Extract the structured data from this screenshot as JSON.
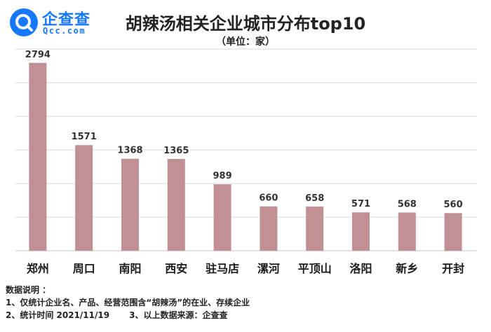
{
  "brand": {
    "name": "企查查",
    "sub": "Qcc.com",
    "color": "#1677ff"
  },
  "chart_data": {
    "type": "bar",
    "title": "胡辣汤相关企业城市分布top10",
    "subtitle": "（单位：家）",
    "categories": [
      "郑州",
      "周口",
      "南阳",
      "西安",
      "驻马店",
      "漯河",
      "平顶山",
      "洛阳",
      "新乡",
      "开封"
    ],
    "values": [
      2794,
      1571,
      1368,
      1365,
      989,
      660,
      658,
      571,
      568,
      560
    ],
    "ylim": [
      0,
      3000
    ],
    "grid": true,
    "bar_color": "#c09094",
    "grid_color": "#d9d9d9"
  },
  "notes": {
    "heading": "数据说明 ：",
    "line1": "1、仅统计企业名、产品、经营范围含“胡辣汤”的在业、存续企业",
    "line2a": "2、统计时间  2021/11/19",
    "line2b": "3、以上数据来源：企查查"
  }
}
